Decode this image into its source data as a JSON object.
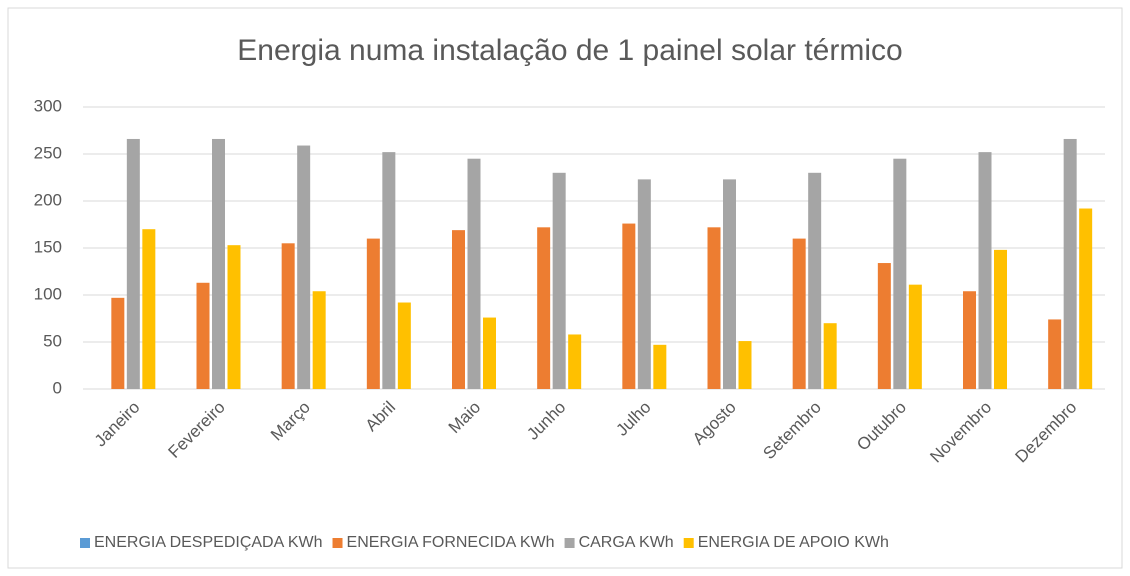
{
  "chart_data": {
    "type": "bar",
    "title": "Energia numa instalação de 1 painel solar térmico",
    "categories": [
      "Janeiro",
      "Fevereiro",
      "Março",
      "Abril",
      "Maio",
      "Junho",
      "Julho",
      "Agosto",
      "Setembro",
      "Outubro",
      "Novembro",
      "Dezembro"
    ],
    "series": [
      {
        "name": "ENERGIA DESPEDIÇADA KWh",
        "color": "#5b9bd5",
        "values": [
          0,
          0,
          0,
          0,
          0,
          0,
          0,
          0,
          0,
          0,
          0,
          0
        ]
      },
      {
        "name": "ENERGIA FORNECIDA KWh",
        "color": "#ed7d31",
        "values": [
          97,
          113,
          155,
          160,
          169,
          172,
          176,
          172,
          160,
          134,
          104,
          74
        ]
      },
      {
        "name": "CARGA KWh",
        "color": "#a5a5a5",
        "values": [
          266,
          266,
          259,
          252,
          245,
          230,
          223,
          223,
          230,
          245,
          252,
          266
        ]
      },
      {
        "name": "ENERGIA DE APOIO KWh",
        "color": "#ffc000",
        "values": [
          170,
          153,
          104,
          92,
          76,
          58,
          47,
          51,
          70,
          111,
          148,
          192
        ]
      }
    ],
    "ylim": [
      0,
      300
    ],
    "yticks": [
      0,
      50,
      100,
      150,
      200,
      250,
      300
    ],
    "grid": true,
    "legend": "bottom"
  }
}
